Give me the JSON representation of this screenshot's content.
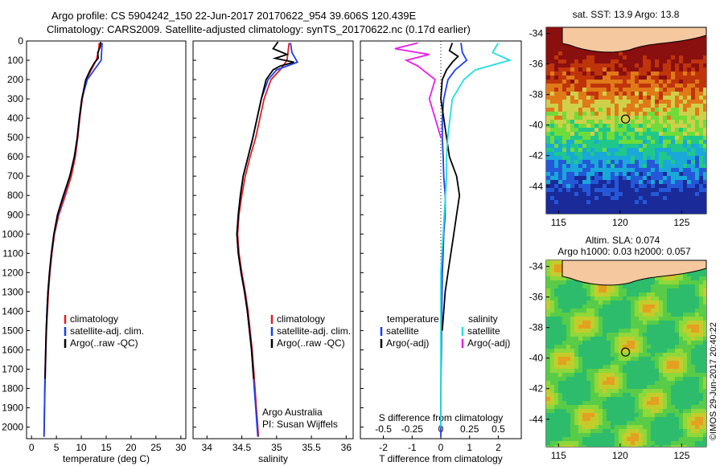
{
  "header": {
    "line1": "Argo profile: CS 5904242_150 22-Jun-2017 20170622_954 39.606S 120.439E",
    "line2": "Climatology: CARS2009. Satellite-adjusted climatology: synTS_20170622.nc (0.17d earlier)"
  },
  "colors": {
    "climatology": "#e0201e",
    "satellite": "#1a3ef0",
    "argo": "#000000",
    "salinity_satellite": "#22dede",
    "salinity_argo": "#e81ee8",
    "land": "#f6c8a0"
  },
  "chart_data": [
    {
      "type": "line",
      "xlabel": "temperature (deg C)",
      "xlim": [
        -1,
        31
      ],
      "ylim": [
        2060,
        0
      ],
      "xticks": [
        0,
        5,
        10,
        15,
        20,
        25,
        30
      ],
      "yticks": [
        0,
        100,
        200,
        300,
        400,
        500,
        600,
        700,
        800,
        900,
        1000,
        1100,
        1200,
        1300,
        1400,
        1500,
        1600,
        1700,
        1800,
        1900,
        2000
      ],
      "legend": [
        "climatology",
        "satellite-adj. clim.",
        "Argo(..raw -QC)"
      ],
      "series": [
        {
          "name": "climatology",
          "depth": [
            10,
            50,
            100,
            150,
            200,
            300,
            400,
            500,
            600,
            700,
            800,
            900,
            1000,
            1100,
            1200,
            1300,
            1400,
            1500,
            1600,
            1700,
            1800,
            1900,
            2000,
            2050
          ],
          "values": [
            13.6,
            13.5,
            13.0,
            12.0,
            11.0,
            10.2,
            9.7,
            9.3,
            8.8,
            8.0,
            6.8,
            5.5,
            4.6,
            4.1,
            3.7,
            3.4,
            3.2,
            3.0,
            2.9,
            2.8,
            2.7,
            2.6,
            2.55,
            2.5
          ]
        },
        {
          "name": "satellite-adj. clim.",
          "depth": [
            10,
            50,
            100,
            150,
            200,
            300,
            400,
            500,
            600,
            700,
            800,
            900,
            1000,
            1100,
            1200,
            1300,
            1400,
            1500,
            1600,
            1700,
            1800,
            1900,
            2000,
            2050
          ],
          "values": [
            14.2,
            14.1,
            14.0,
            12.6,
            11.2,
            10.1,
            9.6,
            9.2,
            8.6,
            7.7,
            6.5,
            5.3,
            4.5,
            4.0,
            3.6,
            3.3,
            3.1,
            2.95,
            2.85,
            2.75,
            2.65,
            2.6,
            2.55,
            2.5
          ]
        },
        {
          "name": "Argo(..raw -QC)",
          "depth": [
            5,
            30,
            60,
            90,
            110,
            150,
            200,
            300,
            400,
            500,
            600,
            700,
            800,
            900,
            1000,
            1100,
            1200,
            1300,
            1400,
            1500,
            1600,
            1700,
            1750
          ],
          "values": [
            13.9,
            13.8,
            13.3,
            13.4,
            12.7,
            11.8,
            10.9,
            10.1,
            9.6,
            9.2,
            8.6,
            7.7,
            6.4,
            5.2,
            4.5,
            4.0,
            3.6,
            3.3,
            3.1,
            2.95,
            2.85,
            2.75,
            2.72
          ]
        }
      ]
    },
    {
      "type": "line",
      "xlabel": "salinity",
      "xlim": [
        33.8,
        36.1
      ],
      "ylim": [
        2060,
        0
      ],
      "xticks": [
        34,
        34.5,
        35,
        35.5,
        36
      ],
      "legend": [
        "climatology",
        "satellite-adj. clim.",
        "Argo(..raw -QC)"
      ],
      "annotation1": "Argo Australia",
      "annotation2": "PI: Susan Wijffels",
      "series": [
        {
          "name": "climatology",
          "depth": [
            10,
            100,
            150,
            200,
            300,
            400,
            500,
            600,
            700,
            800,
            900,
            1000,
            1100,
            1200,
            1300,
            1400,
            1500,
            1600,
            1700,
            1800,
            1900,
            2000,
            2050
          ],
          "values": [
            35.18,
            35.15,
            35.05,
            34.92,
            34.82,
            34.76,
            34.7,
            34.62,
            34.55,
            34.5,
            34.46,
            34.44,
            34.46,
            34.5,
            34.55,
            34.59,
            34.62,
            34.65,
            34.67,
            34.69,
            34.71,
            34.73,
            34.74
          ]
        },
        {
          "name": "satellite-adj. clim.",
          "depth": [
            10,
            60,
            110,
            150,
            200,
            300,
            400,
            500,
            600,
            700,
            800,
            900,
            1000,
            1100,
            1200,
            1300,
            1400,
            1500,
            1600,
            1700,
            1800,
            1900,
            2000,
            2050
          ],
          "values": [
            35.2,
            35.22,
            35.3,
            35.0,
            34.88,
            34.78,
            34.72,
            34.66,
            34.59,
            34.52,
            34.48,
            34.45,
            34.43,
            34.45,
            34.49,
            34.54,
            34.58,
            34.61,
            34.64,
            34.66,
            34.68,
            34.7,
            34.72,
            34.73
          ]
        },
        {
          "name": "Argo(..raw -QC)",
          "depth": [
            5,
            40,
            70,
            90,
            110,
            130,
            150,
            200,
            300,
            400,
            500,
            600,
            700,
            800,
            900,
            1000,
            1100,
            1200,
            1300,
            1400,
            1500,
            1600,
            1700,
            1750
          ],
          "values": [
            35.02,
            34.95,
            35.15,
            34.98,
            35.25,
            35.05,
            34.95,
            34.85,
            34.78,
            34.72,
            34.66,
            34.59,
            34.52,
            34.48,
            34.45,
            34.43,
            34.45,
            34.49,
            34.54,
            34.58,
            34.61,
            34.64,
            34.66,
            34.67
          ]
        }
      ]
    },
    {
      "type": "line",
      "xlabel": "T difference from climatology",
      "xlabel_top": "S difference from climatology",
      "xlim": [
        -2.8,
        2.8
      ],
      "ylim": [
        2060,
        0
      ],
      "xticks": [
        -2,
        -1,
        0,
        1,
        2
      ],
      "xticks_top": [
        "-0.5",
        "-0.25",
        "0",
        "0.25",
        "0.5"
      ],
      "legend_temperature_title": "temperature",
      "legend_salinity_title": "salinity",
      "legend_temperature": [
        "satellite",
        "Argo(-adj)"
      ],
      "legend_salinity": [
        "satellite",
        "Argo(-adj)"
      ],
      "series": [
        {
          "name": "satellite",
          "group": "temperature",
          "depth": [
            10,
            60,
            100,
            150,
            200,
            300,
            400,
            500,
            600,
            700,
            800,
            900,
            1000,
            1100,
            1200,
            1400,
            1600,
            1800,
            2000,
            2050
          ],
          "values": [
            0.7,
            0.75,
            0.9,
            0.5,
            0.25,
            0.1,
            0.05,
            0.05,
            0.08,
            0.1,
            0.15,
            0.15,
            0.1,
            0.08,
            0.05,
            0.03,
            0.02,
            0.0,
            0.0,
            0.0
          ]
        },
        {
          "name": "Argo(-adj)",
          "group": "temperature",
          "depth": [
            10,
            50,
            80,
            110,
            150,
            200,
            300,
            400,
            500,
            600,
            700,
            800,
            900,
            1000,
            1100,
            1200,
            1300,
            1400,
            1500
          ],
          "values": [
            0.4,
            0.3,
            0.6,
            0.4,
            0.2,
            0.05,
            0.0,
            0.1,
            0.2,
            0.3,
            0.55,
            0.65,
            0.55,
            0.45,
            0.35,
            0.25,
            0.15,
            0.1,
            0.05
          ]
        },
        {
          "name": "satellite",
          "group": "salinity",
          "depth": [
            10,
            60,
            100,
            150,
            200,
            300,
            400,
            500,
            600,
            700,
            800,
            900,
            1000,
            1100,
            1200,
            1400,
            1600,
            1800,
            2000
          ],
          "values": [
            0.5,
            0.45,
            0.6,
            0.3,
            0.2,
            0.1,
            0.08,
            0.06,
            0.05,
            0.05,
            0.04,
            0.03,
            0.02,
            0.01,
            0.0,
            0.0,
            0.0,
            0.0,
            0.0
          ]
        },
        {
          "name": "Argo(-adj)",
          "group": "salinity",
          "depth": [
            10,
            40,
            70,
            100,
            130,
            200,
            300,
            400,
            500
          ],
          "values": [
            -0.2,
            -0.4,
            -0.1,
            -0.3,
            -0.2,
            -0.05,
            -0.1,
            -0.05,
            0.0
          ]
        }
      ]
    }
  ],
  "maps": {
    "sst": {
      "title": "sat. SST: 13.9 Argo: 13.8",
      "yticks": [
        "-34",
        "-36",
        "-38",
        "-40",
        "-42",
        "-44"
      ],
      "xticks": [
        "115",
        "120",
        "125"
      ]
    },
    "sla": {
      "title1": "Altim. SLA: 0.074",
      "title2": "Argo h1000: 0.03 h2000: 0.057",
      "yticks": [
        "-34",
        "-36",
        "-38",
        "-40",
        "-42",
        "-44"
      ],
      "xticks": [
        "115",
        "120",
        "125"
      ]
    },
    "float_lon": 120.439,
    "float_lat": -39.606
  },
  "stamp": "©IMOS 29-Jun-2017 20:40:22"
}
